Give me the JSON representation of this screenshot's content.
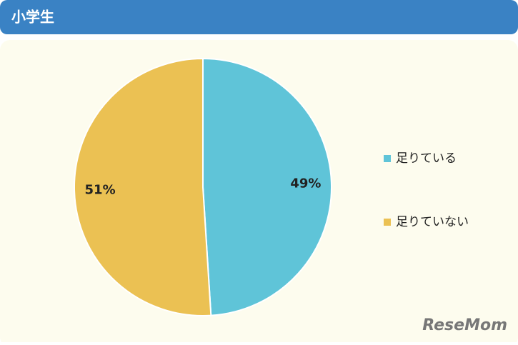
{
  "chart_data": {
    "type": "pie",
    "title": "小学生",
    "categories": [
      "足りている",
      "足りていない"
    ],
    "values": [
      49,
      51
    ],
    "value_labels": [
      "49%",
      "51%"
    ],
    "colors": [
      "#5fc4d8",
      "#ebc153"
    ],
    "legend": "right",
    "watermark": "ReseMom"
  }
}
